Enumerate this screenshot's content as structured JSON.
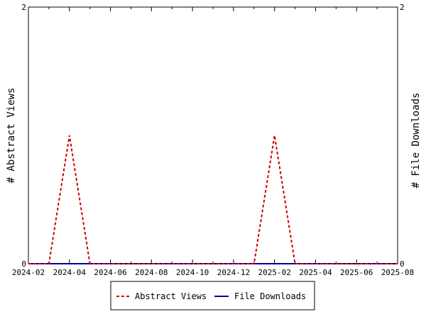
{
  "chart_data": {
    "type": "line",
    "x": [
      "2024-02",
      "2024-03",
      "2024-04",
      "2024-05",
      "2024-06",
      "2024-07",
      "2024-08",
      "2024-09",
      "2024-10",
      "2024-11",
      "2024-12",
      "2025-01",
      "2025-02",
      "2025-03",
      "2025-04",
      "2025-05",
      "2025-06",
      "2025-07",
      "2025-08"
    ],
    "xticks": [
      "2024-02",
      "2024-04",
      "2024-06",
      "2024-08",
      "2024-10",
      "2024-12",
      "2025-02",
      "2025-04",
      "2025-06",
      "2025-08"
    ],
    "series": [
      {
        "name": "Abstract Views",
        "axis": "left",
        "color": "#cc0000",
        "style": "dashed",
        "values": [
          0,
          0,
          1,
          0,
          0,
          0,
          0,
          0,
          0,
          0,
          0,
          0,
          1,
          0,
          0,
          0,
          0,
          0,
          0
        ]
      },
      {
        "name": "File Downloads",
        "axis": "right",
        "color": "#000099",
        "style": "solid",
        "values": [
          0,
          0,
          0,
          0,
          0,
          0,
          0,
          0,
          0,
          0,
          0,
          0,
          0,
          0,
          0,
          0,
          0,
          0,
          0
        ]
      }
    ],
    "ylabel_left": "# Abstract Views",
    "ylabel_right": "# File Downloads",
    "ylim_left": [
      0,
      2
    ],
    "ylim_right": [
      0,
      2
    ],
    "yticks_left": [
      "0",
      "2"
    ],
    "yticks_right": [
      "0",
      "2"
    ],
    "grid": false,
    "legend_position": "bottom"
  }
}
